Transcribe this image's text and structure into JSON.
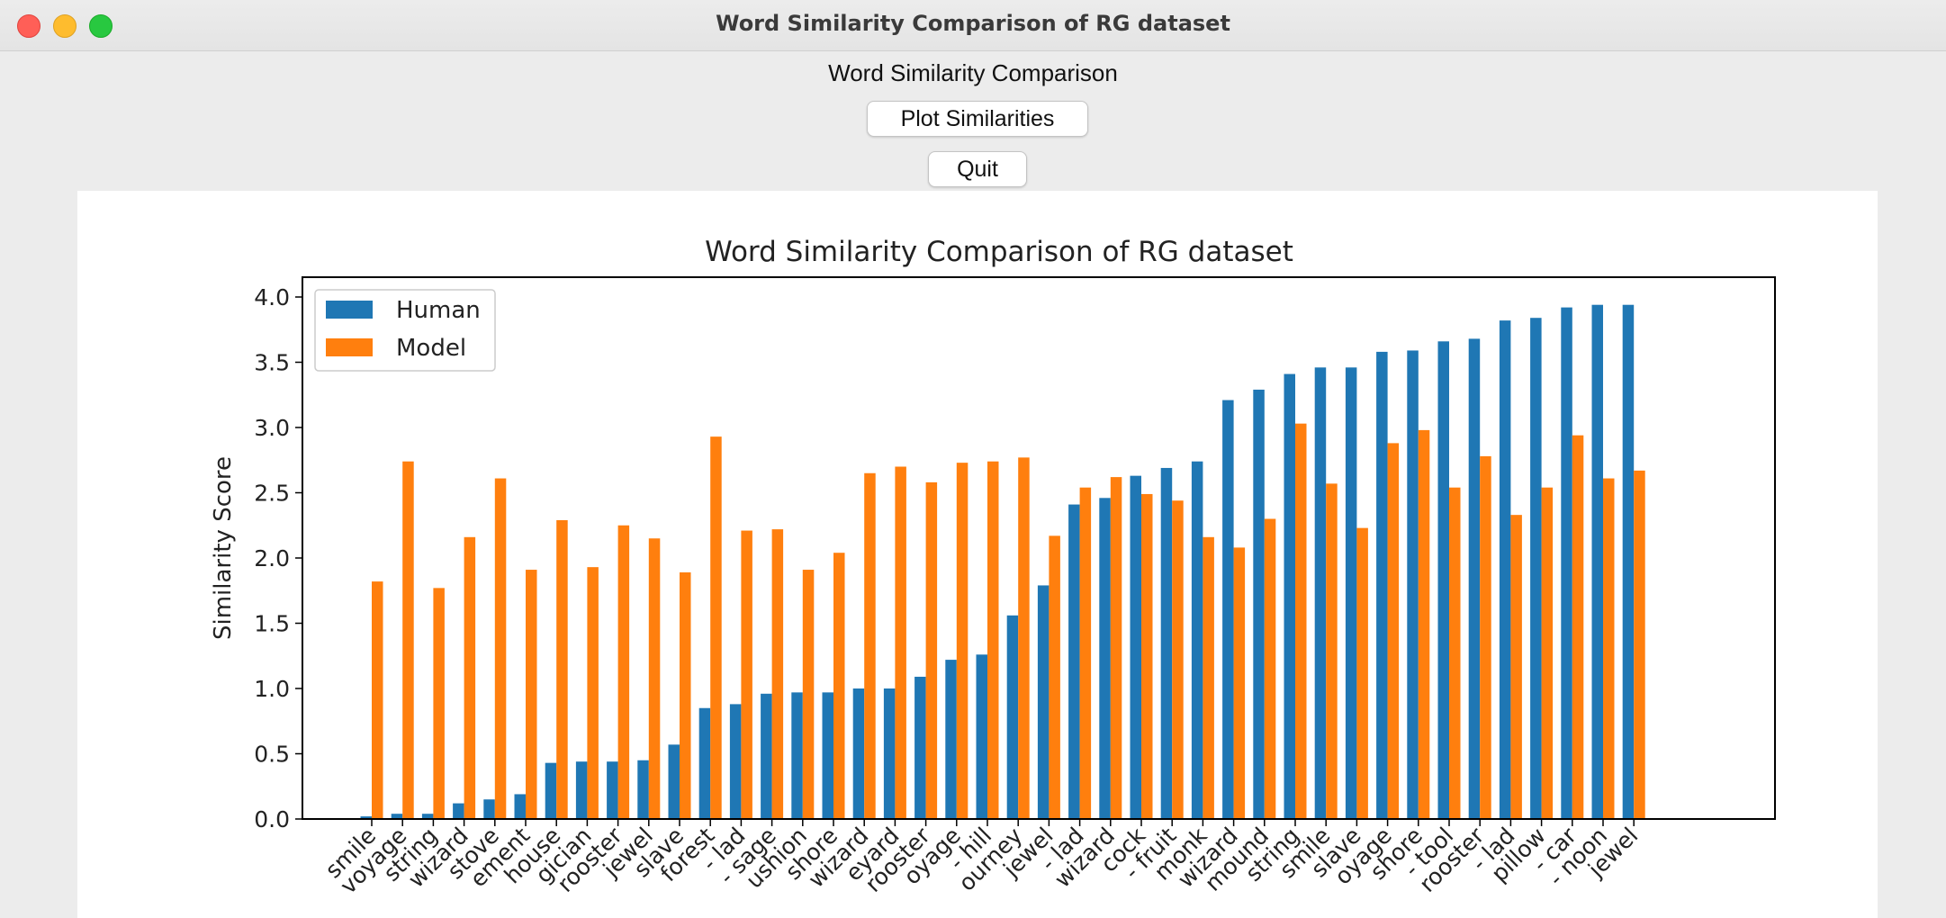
{
  "window": {
    "title": "Word Similarity Comparison of RG dataset"
  },
  "app": {
    "heading": "Word Similarity Comparison",
    "plot_button_label": "Plot Similarities",
    "quit_button_label": "Quit"
  },
  "colors": {
    "human": "#1f77b4",
    "model": "#ff7f0e"
  },
  "chart_data": {
    "type": "bar",
    "title": "Word Similarity Comparison of RG dataset",
    "xlabel": "",
    "ylabel": "Similarity Score",
    "ylim": [
      0,
      4.0
    ],
    "yticks": [
      "0.0",
      "0.5",
      "1.0",
      "1.5",
      "2.0",
      "2.5",
      "3.0",
      "3.5",
      "4.0"
    ],
    "grid": false,
    "legend_position": "top-left",
    "categories": [
      "smile",
      "voyage",
      "string",
      "wizard",
      "stove",
      "ement",
      "house",
      "gician",
      "rooster",
      "jewel",
      "slave",
      "forest",
      "- lad",
      "- sage",
      "ushion",
      "shore",
      "wizard",
      "eyard",
      "rooster",
      "oyage",
      "- hill",
      "ourney",
      "jewel",
      "- lad",
      "wizard",
      "cock",
      "- fruit",
      "monk",
      "wizard",
      "mound",
      "string",
      "smile",
      "slave",
      "oyage",
      "shore",
      "- tool",
      "rooster",
      "- lad",
      "pillow",
      "- car",
      "- noon",
      "jewel"
    ],
    "series": [
      {
        "name": "Human",
        "values": [
          0.02,
          0.04,
          0.04,
          0.12,
          0.15,
          0.19,
          0.43,
          0.44,
          0.44,
          0.45,
          0.57,
          0.85,
          0.88,
          0.96,
          0.97,
          0.97,
          1.0,
          1.0,
          1.09,
          1.22,
          1.26,
          1.56,
          1.79,
          2.41,
          2.46,
          2.63,
          2.69,
          2.74,
          3.21,
          3.29,
          3.41,
          3.46,
          3.46,
          3.58,
          3.59,
          3.66,
          3.68,
          3.82,
          3.84,
          3.92,
          3.94,
          3.94
        ]
      },
      {
        "name": "Model",
        "values": [
          1.82,
          2.74,
          1.77,
          2.16,
          2.61,
          1.91,
          2.29,
          1.93,
          2.25,
          2.15,
          1.89,
          2.93,
          2.21,
          2.22,
          1.91,
          2.04,
          2.65,
          2.7,
          2.58,
          2.73,
          2.74,
          2.77,
          2.17,
          2.54,
          2.62,
          2.49,
          2.44,
          2.16,
          2.08,
          2.3,
          3.03,
          2.57,
          2.23,
          2.88,
          2.98,
          2.54,
          2.78,
          2.33,
          2.54,
          2.94,
          2.61,
          2.67
        ]
      }
    ]
  }
}
